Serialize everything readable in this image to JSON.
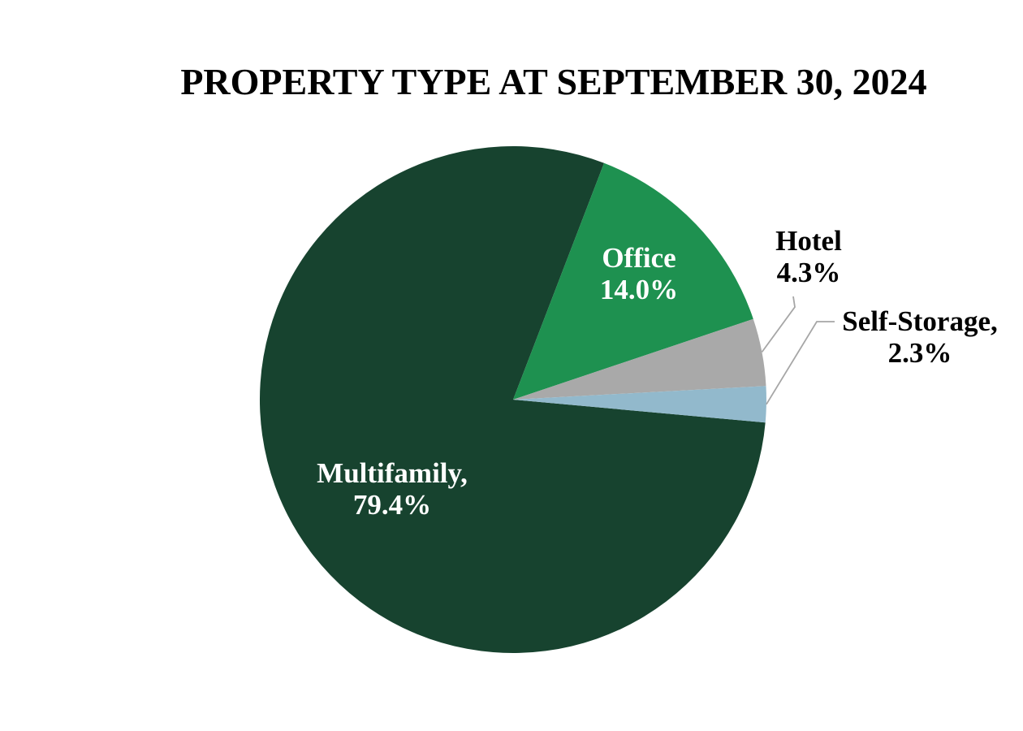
{
  "title": "PROPERTY TYPE AT SEPTEMBER 30, 2024",
  "background_color": "#FFFFFF",
  "leader_line_color": "#A6A6A6",
  "chart_data": {
    "type": "pie",
    "title": "PROPERTY TYPE AT SEPTEMBER 30, 2024",
    "unit": "percent",
    "categories": [
      "Multifamily",
      "Office",
      "Hotel",
      "Self-Storage"
    ],
    "values": [
      79.4,
      14.0,
      4.3,
      2.3
    ],
    "start_angle_deg_clockwise_from_top": 95.2,
    "direction": "clockwise",
    "legend": "none",
    "series": [
      {
        "name": "Multifamily",
        "value": 79.4,
        "color": "#17432F",
        "label_lines": [
          "Multifamily,",
          "79.4%"
        ],
        "label_placement": "inside",
        "label_color": "#FFFFFF",
        "leader_line": false
      },
      {
        "name": "Office",
        "value": 14.0,
        "color": "#1E9150",
        "label_lines": [
          "Office",
          "14.0%"
        ],
        "label_placement": "inside",
        "label_color": "#FFFFFF",
        "leader_line": false
      },
      {
        "name": "Hotel",
        "value": 4.3,
        "color": "#A9A9A9",
        "label_lines": [
          "Hotel",
          "4.3%"
        ],
        "label_placement": "outside",
        "label_color": "#000000",
        "leader_line": true
      },
      {
        "name": "Self-Storage",
        "value": 2.3,
        "color": "#92B9CC",
        "label_lines": [
          "Self-Storage,",
          "2.3%"
        ],
        "label_placement": "outside",
        "label_color": "#000000",
        "leader_line": true
      }
    ]
  }
}
